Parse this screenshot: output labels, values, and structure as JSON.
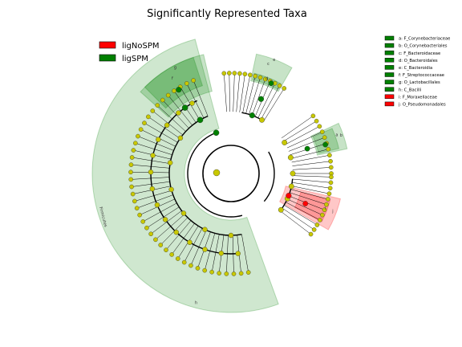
{
  "chart_data": {
    "type": "cladogram",
    "title": "Significantly Represented Taxa",
    "groups": [
      {
        "name": "ligNoSPM",
        "color": "#ff0000"
      },
      {
        "name": "ligSPM",
        "color": "#008000"
      }
    ],
    "clades": [
      {
        "letter": "a",
        "label": "F_Corynebacteriaceae",
        "group": "ligSPM"
      },
      {
        "letter": "b",
        "label": "O_Corynebacteriales",
        "group": "ligSPM"
      },
      {
        "letter": "c",
        "label": "F_Bacteroidaceae",
        "group": "ligSPM"
      },
      {
        "letter": "d",
        "label": "O_Bacteroidales",
        "group": "ligSPM"
      },
      {
        "letter": "e",
        "label": "C_Bacteroidia",
        "group": "ligSPM"
      },
      {
        "letter": "f",
        "label": "F_Streptococcaceae",
        "group": "ligSPM"
      },
      {
        "letter": "g",
        "label": "O_Lactobacillales",
        "group": "ligSPM"
      },
      {
        "letter": "h",
        "label": "C_Bacilli",
        "group": "ligSPM"
      },
      {
        "letter": "i",
        "label": "F_Moraxellaceae",
        "group": "ligNoSPM"
      },
      {
        "letter": "j",
        "label": "O_Pseudomonadales",
        "group": "ligNoSPM"
      }
    ],
    "phylum_label": "Firmicutes",
    "colors": {
      "ligNoSPM": "#ff0000",
      "ligSPM": "#008000",
      "neutral": "#c8c800"
    }
  }
}
